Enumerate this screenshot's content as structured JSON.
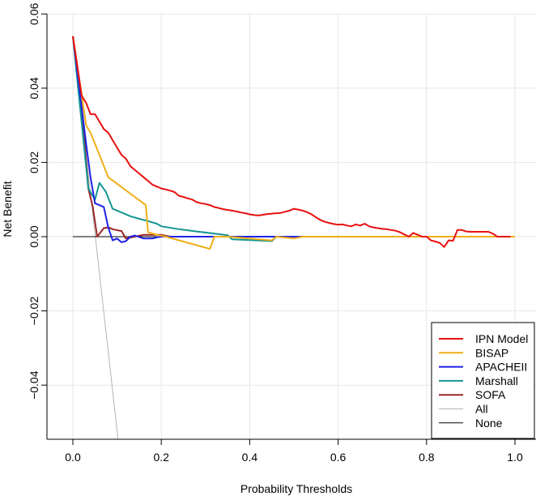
{
  "chart_data": {
    "type": "line",
    "title": "",
    "xlabel": "Probability Thresholds",
    "ylabel": "Net Benefit",
    "xlim": [
      0,
      1
    ],
    "ylim": [
      -0.055,
      0.06
    ],
    "x_ticks": [
      0.0,
      0.2,
      0.4,
      0.6,
      0.8,
      1.0
    ],
    "x_tick_labels": [
      "0.0",
      "0.2",
      "0.4",
      "0.6",
      "0.8",
      "1.0"
    ],
    "y_ticks": [
      -0.04,
      -0.02,
      0.0,
      0.02,
      0.04,
      0.06
    ],
    "y_tick_labels": [
      "−0.04",
      "−0.02",
      "0.00",
      "0.02",
      "0.04",
      "0.06"
    ],
    "grid": true,
    "legend_position": "bottom-right",
    "series": [
      {
        "name": "IPN Model",
        "color": "#e8100f",
        "x": [
          0.0,
          0.01,
          0.02,
          0.03,
          0.04,
          0.05,
          0.06,
          0.07,
          0.08,
          0.09,
          0.1,
          0.11,
          0.12,
          0.13,
          0.14,
          0.15,
          0.16,
          0.17,
          0.18,
          0.19,
          0.2,
          0.21,
          0.22,
          0.23,
          0.24,
          0.25,
          0.26,
          0.27,
          0.28,
          0.29,
          0.3,
          0.31,
          0.32,
          0.33,
          0.34,
          0.35,
          0.36,
          0.37,
          0.38,
          0.39,
          0.4,
          0.41,
          0.42,
          0.43,
          0.44,
          0.45,
          0.46,
          0.47,
          0.48,
          0.49,
          0.5,
          0.51,
          0.52,
          0.53,
          0.54,
          0.55,
          0.56,
          0.57,
          0.58,
          0.59,
          0.6,
          0.61,
          0.62,
          0.63,
          0.64,
          0.65,
          0.66,
          0.67,
          0.68,
          0.69,
          0.7,
          0.71,
          0.72,
          0.73,
          0.74,
          0.75,
          0.76,
          0.77,
          0.78,
          0.79,
          0.8,
          0.81,
          0.82,
          0.83,
          0.84,
          0.85,
          0.86,
          0.87,
          0.88,
          0.89,
          0.9,
          0.91,
          0.92,
          0.93,
          0.94,
          0.95,
          0.96,
          0.97,
          0.98,
          0.99
        ],
        "values": [
          0.054,
          0.046,
          0.038,
          0.036,
          0.033,
          0.033,
          0.031,
          0.029,
          0.028,
          0.026,
          0.024,
          0.022,
          0.021,
          0.019,
          0.018,
          0.017,
          0.016,
          0.015,
          0.014,
          0.0135,
          0.013,
          0.0127,
          0.0124,
          0.012,
          0.011,
          0.0107,
          0.0103,
          0.01,
          0.0093,
          0.009,
          0.0088,
          0.0085,
          0.008,
          0.0077,
          0.0074,
          0.0072,
          0.007,
          0.0068,
          0.0065,
          0.0063,
          0.006,
          0.0058,
          0.0057,
          0.0059,
          0.0061,
          0.0062,
          0.0063,
          0.0064,
          0.0067,
          0.007,
          0.0075,
          0.0073,
          0.007,
          0.0066,
          0.006,
          0.0052,
          0.0045,
          0.004,
          0.0037,
          0.0034,
          0.0032,
          0.0033,
          0.003,
          0.0028,
          0.0033,
          0.003,
          0.0035,
          0.0028,
          0.0025,
          0.0023,
          0.0021,
          0.002,
          0.0018,
          0.0016,
          0.0012,
          0.0006,
          0.0,
          0.001,
          0.0005,
          0.0,
          0.0,
          -0.001,
          -0.0013,
          -0.0017,
          -0.0028,
          -0.001,
          -0.0011,
          0.0018,
          0.0018,
          0.0014,
          0.0013,
          0.0013,
          0.0013,
          0.0013,
          0.0013,
          0.0008,
          0.0,
          0.0,
          0.0,
          0.0
        ]
      },
      {
        "name": "BISAP",
        "color": "#f0ae18",
        "x": [
          0.0,
          0.03,
          0.04,
          0.06,
          0.08,
          0.165,
          0.17,
          0.19,
          0.21,
          0.31,
          0.32,
          0.33,
          0.35,
          0.45,
          0.46,
          0.5,
          0.52,
          1.0
        ],
        "values": [
          0.054,
          0.03,
          0.028,
          0.022,
          0.016,
          0.0085,
          0.0012,
          0.0005,
          0.0,
          -0.0033,
          0.0,
          0.0,
          0.0,
          -0.001,
          0.0,
          -0.0005,
          0.0,
          0.0
        ]
      },
      {
        "name": "APACHEII",
        "color": "#1e22e8",
        "x": [
          0.0,
          0.03,
          0.04,
          0.05,
          0.06,
          0.07,
          0.08,
          0.09,
          0.1,
          0.11,
          0.12,
          0.13,
          0.14,
          0.16,
          0.18,
          0.19,
          0.2,
          0.21,
          0.22,
          1.0
        ],
        "values": [
          0.054,
          0.025,
          0.016,
          0.009,
          0.0085,
          0.008,
          0.0025,
          -0.001,
          -0.0005,
          -0.0015,
          -0.0012,
          0.0,
          0.0003,
          -0.0005,
          -0.0005,
          -0.0002,
          0.0,
          0.0,
          0.0,
          0.0
        ]
      },
      {
        "name": "Marshall",
        "color": "#159592",
        "x": [
          0.0,
          0.035,
          0.05,
          0.06,
          0.075,
          0.09,
          0.11,
          0.13,
          0.15,
          0.17,
          0.19,
          0.2,
          0.24,
          0.28,
          0.35,
          0.36,
          0.45,
          0.46,
          1.0
        ],
        "values": [
          0.054,
          0.013,
          0.01,
          0.0145,
          0.012,
          0.0075,
          0.0065,
          0.0055,
          0.0048,
          0.0042,
          0.0035,
          0.0028,
          0.002,
          0.0014,
          0.0004,
          -0.0007,
          -0.0012,
          0.0,
          0.0
        ]
      },
      {
        "name": "SOFA",
        "color": "#9a2526",
        "x": [
          0.0,
          0.02,
          0.035,
          0.045,
          0.055,
          0.07,
          0.08,
          0.09,
          0.11,
          0.12,
          0.14,
          0.16,
          0.2,
          0.22,
          1.0
        ],
        "values": [
          0.054,
          0.035,
          0.013,
          0.008,
          0.0,
          0.0023,
          0.0025,
          0.002,
          0.0015,
          -0.0005,
          0.0,
          0.0005,
          0.0005,
          0.0,
          0.0
        ]
      },
      {
        "name": "All",
        "color": "#b3b3b3",
        "x": [
          0.0,
          0.1026
        ],
        "values": [
          0.054,
          -0.055
        ]
      },
      {
        "name": "None",
        "color": "#000000",
        "x": [
          0.0,
          1.0
        ],
        "values": [
          0.0,
          0.0
        ]
      }
    ]
  }
}
